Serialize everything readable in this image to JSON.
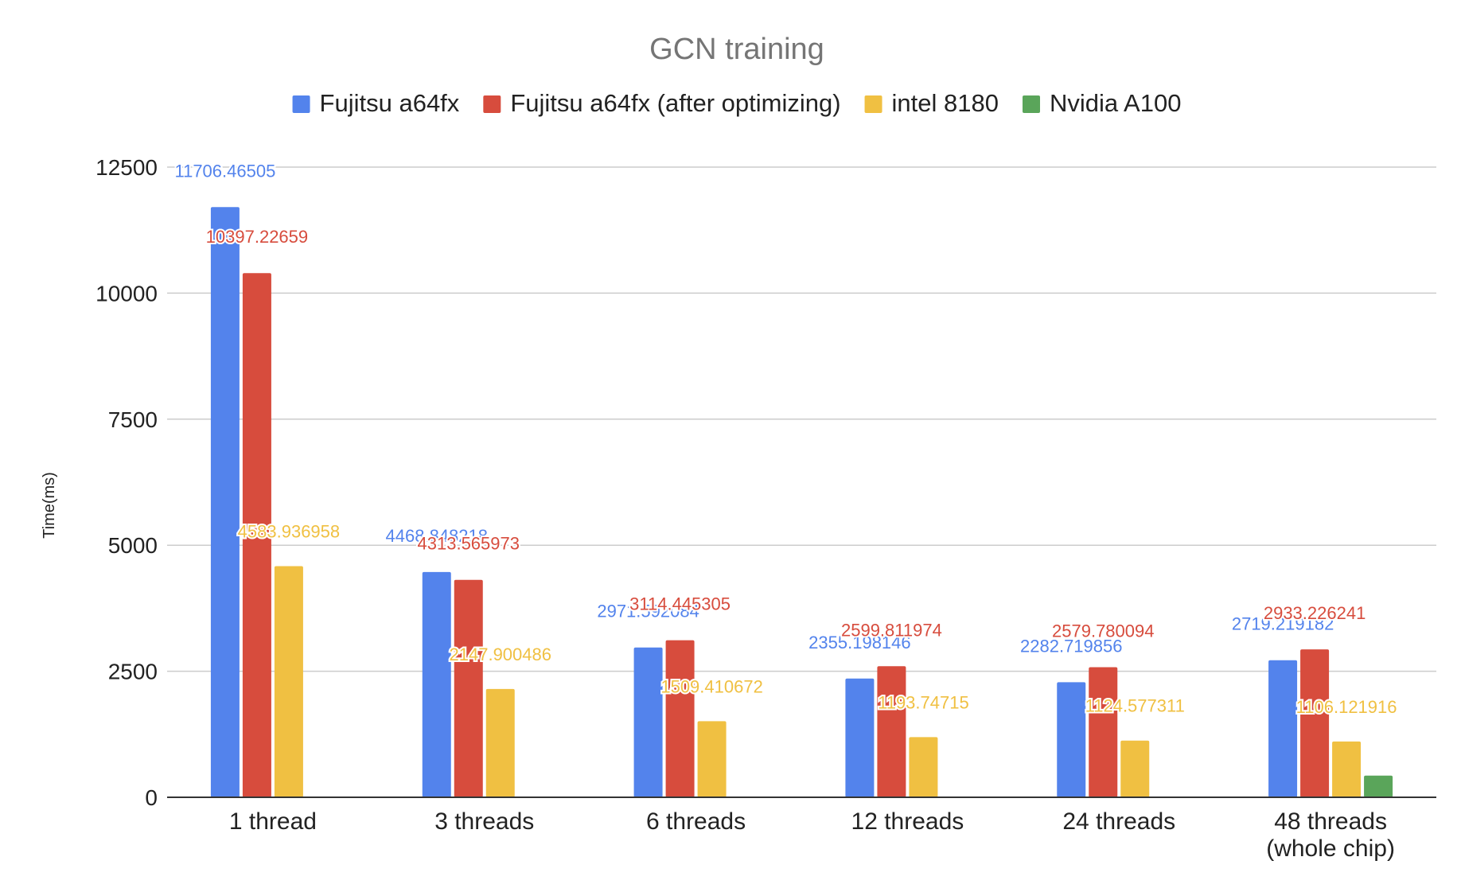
{
  "chart_data": {
    "type": "bar",
    "title": "GCN training",
    "ylabel": "Time(ms)",
    "xlabel": "",
    "ylim": [
      0,
      12500
    ],
    "yticks": [
      0,
      2500,
      5000,
      7500,
      10000,
      12500
    ],
    "grid": true,
    "legend_position": "top",
    "categories": [
      [
        "1 thread"
      ],
      [
        "3 threads"
      ],
      [
        "6 threads"
      ],
      [
        "12 threads"
      ],
      [
        "24 threads"
      ],
      [
        "48 threads",
        "(whole chip)"
      ]
    ],
    "series": [
      {
        "name": "Fujitsu a64fx",
        "color": "#5383ec",
        "values": [
          11706.46505,
          4468.848218,
          2971.592084,
          2355.198146,
          2282.719856,
          2719.219182
        ],
        "labels": [
          "11706.46505",
          "4468.848218",
          "2971.592084",
          "2355.198146",
          "2282.719856",
          "2719.219182"
        ]
      },
      {
        "name": "Fujitsu a64fx (after optimizing)",
        "color": "#d74c3d",
        "values": [
          10397.22659,
          4313.565973,
          3114.445305,
          2599.811974,
          2579.780094,
          2933.226241
        ],
        "labels": [
          "10397.22659",
          "4313.565973",
          "3114.445305",
          "2599.811974",
          "2579.780094",
          "2933.226241"
        ]
      },
      {
        "name": "intel 8180",
        "color": "#f0c042",
        "values": [
          4583.936958,
          2147.900486,
          1509.410672,
          1193.74715,
          1124.577311,
          1106.121916
        ],
        "labels": [
          "4583.936958",
          "2147.900486",
          "1509.410672",
          "1193.74715",
          "1124.577311",
          "1106.121916"
        ]
      },
      {
        "name": "Nvidia A100",
        "color": "#5aa55a",
        "values": [
          null,
          null,
          null,
          null,
          null,
          430
        ],
        "labels": [
          "",
          "",
          "",
          "",
          "",
          ""
        ]
      }
    ]
  }
}
